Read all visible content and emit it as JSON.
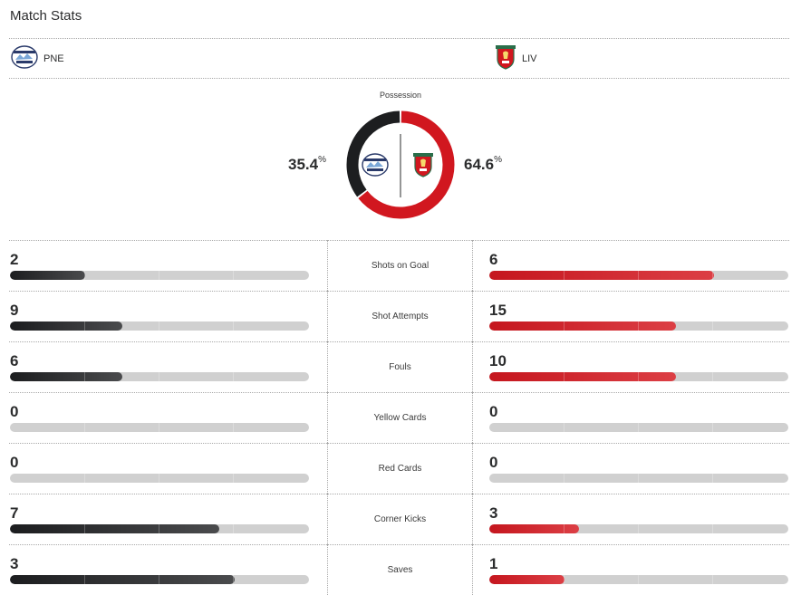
{
  "header": {
    "title": "Match Stats"
  },
  "teams": {
    "home": {
      "abbr": "PNE",
      "color": "#1d1e20",
      "crest_icon": "pne-crest-icon"
    },
    "away": {
      "abbr": "LIV",
      "color": "#d1171f",
      "crest_icon": "liverpool-crest-icon"
    }
  },
  "possession": {
    "label": "Possession",
    "home_value": "35.4",
    "away_value": "64.6",
    "unit": "%",
    "home_fraction": 0.354,
    "away_fraction": 0.646
  },
  "stats": [
    {
      "label": "Shots on Goal",
      "home": "2",
      "away": "6"
    },
    {
      "label": "Shot Attempts",
      "home": "9",
      "away": "15"
    },
    {
      "label": "Fouls",
      "home": "6",
      "away": "10"
    },
    {
      "label": "Yellow Cards",
      "home": "0",
      "away": "0"
    },
    {
      "label": "Red Cards",
      "home": "0",
      "away": "0"
    },
    {
      "label": "Corner Kicks",
      "home": "7",
      "away": "3"
    },
    {
      "label": "Saves",
      "home": "3",
      "away": "1"
    }
  ],
  "colors": {
    "home_bar": "#1d1e20",
    "away_bar": "#d1171f",
    "bar_track": "#d0d0d0"
  }
}
